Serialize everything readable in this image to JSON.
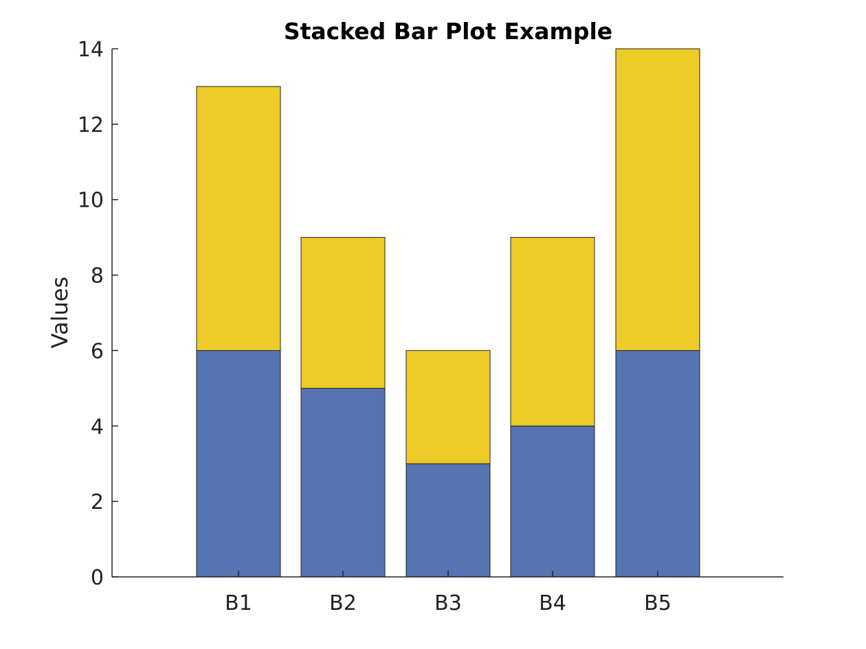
{
  "chart_data": {
    "type": "bar",
    "stacked": true,
    "title": "Stacked Bar Plot Example",
    "xlabel": "",
    "ylabel": "Values",
    "categories": [
      "B1",
      "B2",
      "B3",
      "B4",
      "B5"
    ],
    "series": [
      {
        "values": [
          6,
          5,
          3,
          4,
          6
        ],
        "color": "#5673B2"
      },
      {
        "values": [
          7,
          4,
          3,
          5,
          8
        ],
        "color": "#EDCB28"
      }
    ],
    "ylim": [
      0,
      14
    ],
    "yticks": [
      0,
      2,
      4,
      6,
      8,
      10,
      12,
      14
    ],
    "ytick_labels": [
      "0",
      "2",
      "4",
      "6",
      "8",
      "10",
      "12",
      "14"
    ],
    "grid": false,
    "legend": "none"
  }
}
